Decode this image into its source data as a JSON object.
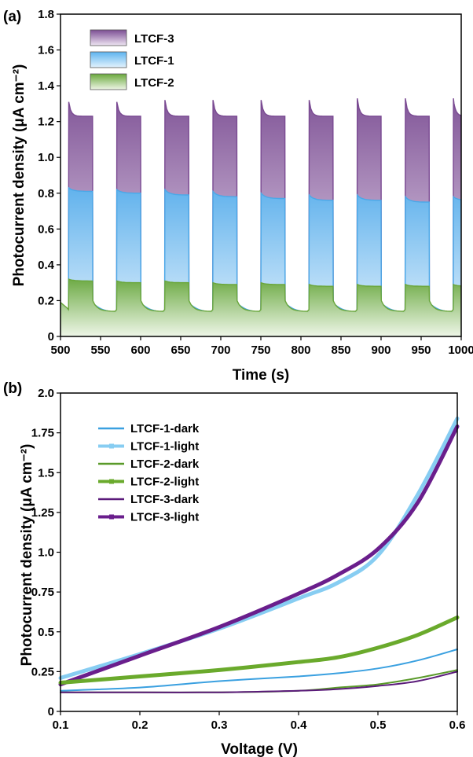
{
  "chart_data": [
    {
      "panel_label": "(a)",
      "type": "area",
      "xlabel": "Time (s)",
      "ylabel": "Photocurrent density (μA cm⁻²)",
      "xlim": [
        500,
        1000
      ],
      "ylim": [
        0,
        1.8
      ],
      "xticks": [
        "500",
        "550",
        "600",
        "650",
        "700",
        "750",
        "800",
        "850",
        "900",
        "950",
        "1000"
      ],
      "yticks": [
        "0",
        "0.2",
        "0.4",
        "0.6",
        "0.8",
        "1.0",
        "1.2",
        "1.4",
        "1.6",
        "1.8"
      ],
      "light_on_s": [
        510,
        570,
        630,
        690,
        750,
        810,
        870,
        930,
        990
      ],
      "light_off_s": [
        540,
        600,
        660,
        720,
        780,
        840,
        900,
        960
      ],
      "series": [
        {
          "name": "LTCF-3",
          "color": "#7a4a92",
          "dark": 0.13,
          "peak": [
            1.31,
            1.31,
            1.32,
            1.32,
            1.32,
            1.32,
            1.33,
            1.33,
            1.33
          ],
          "plateau": [
            1.23,
            1.23,
            1.23,
            1.23,
            1.23,
            1.23,
            1.23,
            1.23,
            1.23
          ]
        },
        {
          "name": "LTCF-1",
          "color": "#4aa8e8",
          "dark": 0.13,
          "peak": [
            0.83,
            0.82,
            0.82,
            0.81,
            0.8,
            0.79,
            0.79,
            0.78,
            0.78
          ],
          "plateau": [
            0.81,
            0.8,
            0.79,
            0.78,
            0.77,
            0.76,
            0.76,
            0.75,
            0.76
          ]
        },
        {
          "name": "LTCF-2",
          "color": "#6aa63a",
          "dark": 0.14,
          "peak": [
            0.32,
            0.31,
            0.31,
            0.3,
            0.3,
            0.29,
            0.29,
            0.29,
            0.29
          ],
          "plateau": [
            0.31,
            0.3,
            0.3,
            0.29,
            0.29,
            0.28,
            0.28,
            0.28,
            0.28
          ]
        }
      ]
    },
    {
      "panel_label": "(b)",
      "type": "line",
      "xlabel": "Voltage (V)",
      "ylabel": "Photocurrent density (μA cm⁻²)",
      "xlim": [
        0.1,
        0.6
      ],
      "ylim": [
        0,
        2.0
      ],
      "xticks": [
        "0.1",
        "0.2",
        "0.3",
        "0.4",
        "0.5",
        "0.6"
      ],
      "yticks": [
        "0",
        "0.25",
        "0.5",
        "0.75",
        "1.0",
        "1.25",
        "1.5",
        "1.75",
        "2.0"
      ],
      "x": [
        0.1,
        0.2,
        0.3,
        0.4,
        0.45,
        0.5,
        0.55,
        0.6
      ],
      "series": [
        {
          "name": "LTCF-1-dark",
          "color": "#3aa0e0",
          "width": 2,
          "values": [
            0.13,
            0.15,
            0.19,
            0.22,
            0.24,
            0.27,
            0.32,
            0.39
          ]
        },
        {
          "name": "LTCF-1-light",
          "color": "#87cdf2",
          "width": 5,
          "values": [
            0.21,
            0.36,
            0.52,
            0.71,
            0.81,
            0.98,
            1.36,
            1.84
          ]
        },
        {
          "name": "LTCF-2-dark",
          "color": "#5a9a2a",
          "width": 2,
          "values": [
            0.12,
            0.12,
            0.12,
            0.13,
            0.15,
            0.17,
            0.21,
            0.26
          ]
        },
        {
          "name": "LTCF-2-light",
          "color": "#6aaa2c",
          "width": 5,
          "values": [
            0.18,
            0.22,
            0.26,
            0.31,
            0.34,
            0.4,
            0.48,
            0.59
          ]
        },
        {
          "name": "LTCF-3-dark",
          "color": "#5a1a7a",
          "width": 2,
          "values": [
            0.12,
            0.12,
            0.12,
            0.13,
            0.14,
            0.16,
            0.19,
            0.25
          ]
        },
        {
          "name": "LTCF-3-light",
          "color": "#6a1e8c",
          "width": 5,
          "values": [
            0.17,
            0.35,
            0.53,
            0.74,
            0.86,
            1.02,
            1.31,
            1.79
          ]
        }
      ]
    }
  ]
}
